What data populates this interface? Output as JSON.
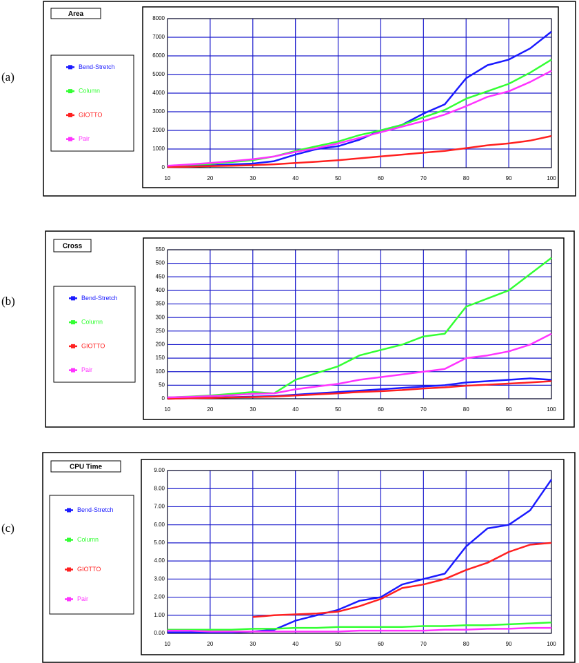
{
  "chart_data": [
    {
      "type": "line",
      "label": "(a)",
      "title": "Area",
      "x": [
        10,
        15,
        20,
        25,
        30,
        35,
        40,
        45,
        50,
        55,
        60,
        65,
        70,
        75,
        80,
        85,
        90,
        95,
        100
      ],
      "xlim": [
        10,
        100
      ],
      "xticks": [
        10,
        20,
        30,
        40,
        50,
        60,
        70,
        80,
        90,
        100
      ],
      "ylim": [
        0,
        8000
      ],
      "yticks": [
        0,
        1000,
        2000,
        3000,
        4000,
        5000,
        6000,
        7000,
        8000
      ],
      "grid": true,
      "series": [
        {
          "name": "Bend-Stretch",
          "color": "#1a1aff",
          "values": [
            50,
            80,
            120,
            170,
            220,
            350,
            700,
            1000,
            1150,
            1500,
            2000,
            2300,
            2900,
            3400,
            4800,
            5500,
            5800,
            6400,
            7300
          ]
        },
        {
          "name": "Column",
          "color": "#33ff33",
          "values": [
            80,
            150,
            200,
            300,
            400,
            600,
            900,
            1150,
            1400,
            1750,
            2000,
            2300,
            2700,
            3100,
            3700,
            4100,
            4500,
            5100,
            5800
          ]
        },
        {
          "name": "GIOTTO",
          "color": "#ff2020",
          "values": [
            30,
            50,
            80,
            100,
            130,
            180,
            250,
            320,
            400,
            500,
            600,
            700,
            800,
            900,
            1050,
            1200,
            1300,
            1450,
            1700
          ]
        },
        {
          "name": "Pair",
          "color": "#ff33ff",
          "values": [
            100,
            170,
            250,
            350,
            450,
            600,
            850,
            1050,
            1300,
            1600,
            1900,
            2200,
            2500,
            2850,
            3300,
            3800,
            4100,
            4600,
            5200
          ]
        }
      ]
    },
    {
      "type": "line",
      "label": "(b)",
      "title": "Cross",
      "x": [
        10,
        15,
        20,
        25,
        30,
        35,
        40,
        45,
        50,
        55,
        60,
        65,
        70,
        75,
        80,
        85,
        90,
        95,
        100
      ],
      "xlim": [
        10,
        100
      ],
      "xticks": [
        10,
        20,
        30,
        40,
        50,
        60,
        70,
        80,
        90,
        100
      ],
      "ylim": [
        0,
        550
      ],
      "yticks": [
        0,
        50,
        100,
        150,
        200,
        250,
        300,
        350,
        400,
        450,
        500,
        550
      ],
      "grid": true,
      "series": [
        {
          "name": "Bend-Stretch",
          "color": "#1a1aff",
          "values": [
            0,
            2,
            4,
            6,
            8,
            10,
            15,
            20,
            25,
            30,
            35,
            40,
            45,
            50,
            60,
            65,
            70,
            75,
            70
          ]
        },
        {
          "name": "Column",
          "color": "#33ff33",
          "values": [
            5,
            8,
            12,
            18,
            25,
            20,
            70,
            95,
            120,
            160,
            180,
            200,
            230,
            240,
            340,
            370,
            400,
            460,
            520
          ]
        },
        {
          "name": "GIOTTO",
          "color": "#ff2020",
          "values": [
            0,
            2,
            3,
            5,
            6,
            8,
            12,
            16,
            20,
            25,
            28,
            32,
            38,
            42,
            48,
            52,
            56,
            60,
            65
          ]
        },
        {
          "name": "Pair",
          "color": "#ff33ff",
          "values": [
            5,
            7,
            10,
            13,
            18,
            20,
            35,
            45,
            55,
            70,
            80,
            90,
            100,
            110,
            150,
            160,
            175,
            200,
            240
          ]
        }
      ]
    },
    {
      "type": "line",
      "label": "(c)",
      "title": "CPU Time",
      "x": [
        10,
        15,
        20,
        25,
        30,
        35,
        40,
        45,
        50,
        55,
        60,
        65,
        70,
        75,
        80,
        85,
        90,
        95,
        100
      ],
      "xlim": [
        10,
        100
      ],
      "xticks": [
        10,
        20,
        30,
        40,
        50,
        60,
        70,
        80,
        90,
        100
      ],
      "ylim": [
        0,
        9
      ],
      "yticks": [
        {
          "value": 0,
          "label": "0.00"
        },
        {
          "value": 1,
          "label": "1.00"
        },
        {
          "value": 2,
          "label": "2.00"
        },
        {
          "value": 3,
          "label": "3.00"
        },
        {
          "value": 4,
          "label": "4.00"
        },
        {
          "value": 5,
          "label": "5.00"
        },
        {
          "value": 6,
          "label": "6.00"
        },
        {
          "value": 7,
          "label": "7.00"
        },
        {
          "value": 8,
          "label": "8.00"
        },
        {
          "value": 9,
          "label": "9.00"
        }
      ],
      "grid": true,
      "series": [
        {
          "name": "Bend-Stretch",
          "color": "#1a1aff",
          "values": [
            0.05,
            0.05,
            0.05,
            0.05,
            0.1,
            0.2,
            0.7,
            1.0,
            1.3,
            1.8,
            2.0,
            2.7,
            3.0,
            3.3,
            4.8,
            5.8,
            6.0,
            6.8,
            8.5
          ]
        },
        {
          "name": "Column",
          "color": "#33ff33",
          "values": [
            0.2,
            0.2,
            0.2,
            0.2,
            0.25,
            0.25,
            0.3,
            0.3,
            0.35,
            0.35,
            0.35,
            0.35,
            0.4,
            0.4,
            0.45,
            0.45,
            0.5,
            0.55,
            0.6
          ]
        },
        {
          "name": "GIOTTO",
          "color": "#ff2020",
          "values": [
            null,
            null,
            null,
            null,
            0.9,
            1.0,
            1.05,
            1.1,
            1.2,
            1.5,
            1.9,
            2.5,
            2.7,
            3.0,
            3.5,
            3.9,
            4.5,
            4.9,
            5.0
          ]
        },
        {
          "name": "Pair",
          "color": "#ff33ff",
          "values": [
            0.15,
            0.15,
            0.1,
            0.1,
            0.1,
            0.1,
            0.1,
            0.1,
            0.1,
            0.15,
            0.15,
            0.15,
            0.15,
            0.2,
            0.2,
            0.25,
            0.25,
            0.3,
            0.3
          ]
        }
      ]
    }
  ]
}
